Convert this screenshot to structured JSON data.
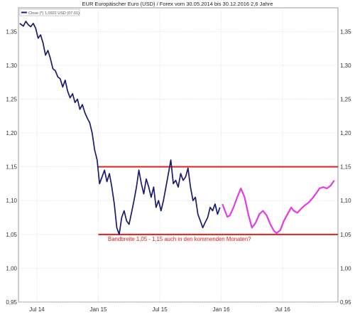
{
  "chart_data": {
    "type": "line",
    "title": "EUR Europäischer Euro (USD) / Forex vom 30.05.2014 bis 30.12.2016 2,6 Jahre",
    "legend": "Close (*) 1,0922 USD (07.01)",
    "y_ticks": [
      "1,35",
      "1,30",
      "1,25",
      "1,20",
      "1,15",
      "1,10",
      "1,05",
      "1,00",
      "0,95"
    ],
    "x_ticks": [
      {
        "label": "Jul 14",
        "x": 2014.55
      },
      {
        "label": "Jan 15",
        "x": 2015.05
      },
      {
        "label": "Jul 15",
        "x": 2015.55
      },
      {
        "label": "Jan 16",
        "x": 2016.05
      },
      {
        "label": "Jul 16",
        "x": 2016.55
      }
    ],
    "xlim": [
      2014.4,
      2017.0
    ],
    "ylim": [
      0.95,
      1.385
    ],
    "series": [
      {
        "color": "#1a1a6e",
        "points": [
          [
            2014.41,
            1.362
          ],
          [
            2014.44,
            1.358
          ],
          [
            2014.46,
            1.365
          ],
          [
            2014.48,
            1.36
          ],
          [
            2014.5,
            1.357
          ],
          [
            2014.52,
            1.362
          ],
          [
            2014.54,
            1.355
          ],
          [
            2014.56,
            1.34
          ],
          [
            2014.58,
            1.345
          ],
          [
            2014.6,
            1.333
          ],
          [
            2014.62,
            1.315
          ],
          [
            2014.64,
            1.322
          ],
          [
            2014.66,
            1.31
          ],
          [
            2014.68,
            1.295
          ],
          [
            2014.7,
            1.292
          ],
          [
            2014.72,
            1.283
          ],
          [
            2014.74,
            1.28
          ],
          [
            2014.76,
            1.268
          ],
          [
            2014.78,
            1.278
          ],
          [
            2014.8,
            1.262
          ],
          [
            2014.82,
            1.252
          ],
          [
            2014.84,
            1.258
          ],
          [
            2014.86,
            1.245
          ],
          [
            2014.88,
            1.25
          ],
          [
            2014.9,
            1.235
          ],
          [
            2014.92,
            1.242
          ],
          [
            2014.94,
            1.23
          ],
          [
            2014.96,
            1.222
          ],
          [
            2014.98,
            1.215
          ],
          [
            2015.0,
            1.2
          ],
          [
            2015.02,
            1.175
          ],
          [
            2015.04,
            1.16
          ],
          [
            2015.06,
            1.125
          ],
          [
            2015.08,
            1.135
          ],
          [
            2015.1,
            1.145
          ],
          [
            2015.12,
            1.128
          ],
          [
            2015.14,
            1.14
          ],
          [
            2015.16,
            1.12
          ],
          [
            2015.18,
            1.095
          ],
          [
            2015.2,
            1.06
          ],
          [
            2015.22,
            1.05
          ],
          [
            2015.24,
            1.075
          ],
          [
            2015.26,
            1.085
          ],
          [
            2015.28,
            1.07
          ],
          [
            2015.3,
            1.065
          ],
          [
            2015.32,
            1.082
          ],
          [
            2015.34,
            1.1
          ],
          [
            2015.36,
            1.12
          ],
          [
            2015.38,
            1.145
          ],
          [
            2015.4,
            1.125
          ],
          [
            2015.42,
            1.11
          ],
          [
            2015.44,
            1.132
          ],
          [
            2015.46,
            1.12
          ],
          [
            2015.48,
            1.105
          ],
          [
            2015.5,
            1.12
          ],
          [
            2015.52,
            1.09
          ],
          [
            2015.54,
            1.1
          ],
          [
            2015.56,
            1.085
          ],
          [
            2015.58,
            1.1
          ],
          [
            2015.6,
            1.12
          ],
          [
            2015.62,
            1.14
          ],
          [
            2015.64,
            1.16
          ],
          [
            2015.66,
            1.125
          ],
          [
            2015.68,
            1.13
          ],
          [
            2015.7,
            1.12
          ],
          [
            2015.72,
            1.14
          ],
          [
            2015.74,
            1.13
          ],
          [
            2015.76,
            1.135
          ],
          [
            2015.78,
            1.148
          ],
          [
            2015.8,
            1.12
          ],
          [
            2015.82,
            1.1
          ],
          [
            2015.84,
            1.105
          ],
          [
            2015.86,
            1.08
          ],
          [
            2015.88,
            1.07
          ],
          [
            2015.9,
            1.06
          ],
          [
            2015.92,
            1.068
          ],
          [
            2015.94,
            1.075
          ],
          [
            2015.96,
            1.09
          ],
          [
            2015.98,
            1.085
          ],
          [
            2016.0,
            1.095
          ],
          [
            2016.02,
            1.08
          ],
          [
            2016.04,
            1.09
          ]
        ]
      },
      {
        "color": "#e43be4",
        "points": [
          [
            2016.06,
            1.095
          ],
          [
            2016.08,
            1.085
          ],
          [
            2016.1,
            1.076
          ],
          [
            2016.12,
            1.078
          ],
          [
            2016.15,
            1.09
          ],
          [
            2016.18,
            1.105
          ],
          [
            2016.21,
            1.118
          ],
          [
            2016.24,
            1.105
          ],
          [
            2016.27,
            1.08
          ],
          [
            2016.3,
            1.06
          ],
          [
            2016.33,
            1.067
          ],
          [
            2016.36,
            1.08
          ],
          [
            2016.39,
            1.085
          ],
          [
            2016.42,
            1.078
          ],
          [
            2016.45,
            1.065
          ],
          [
            2016.48,
            1.055
          ],
          [
            2016.5,
            1.052
          ],
          [
            2016.53,
            1.056
          ],
          [
            2016.56,
            1.07
          ],
          [
            2016.59,
            1.08
          ],
          [
            2016.62,
            1.09
          ],
          [
            2016.64,
            1.085
          ],
          [
            2016.67,
            1.082
          ],
          [
            2016.7,
            1.088
          ],
          [
            2016.73,
            1.093
          ],
          [
            2016.76,
            1.097
          ],
          [
            2016.79,
            1.103
          ],
          [
            2016.82,
            1.11
          ],
          [
            2016.85,
            1.118
          ],
          [
            2016.88,
            1.12
          ],
          [
            2016.91,
            1.118
          ],
          [
            2016.94,
            1.122
          ],
          [
            2016.97,
            1.13
          ]
        ]
      }
    ],
    "reference_lines": [
      {
        "y": 1.15,
        "x_start": 2015.05,
        "x_end": 2017.0,
        "color": "#e0201e"
      },
      {
        "y": 1.05,
        "x_start": 2015.05,
        "x_end": 2017.0,
        "color": "#e0201e"
      }
    ],
    "annotation": "Bandbreite 1,05 - 1,15 auch in den kommenden Monaten?",
    "annotation_color": "#e0201e",
    "grid": true
  }
}
